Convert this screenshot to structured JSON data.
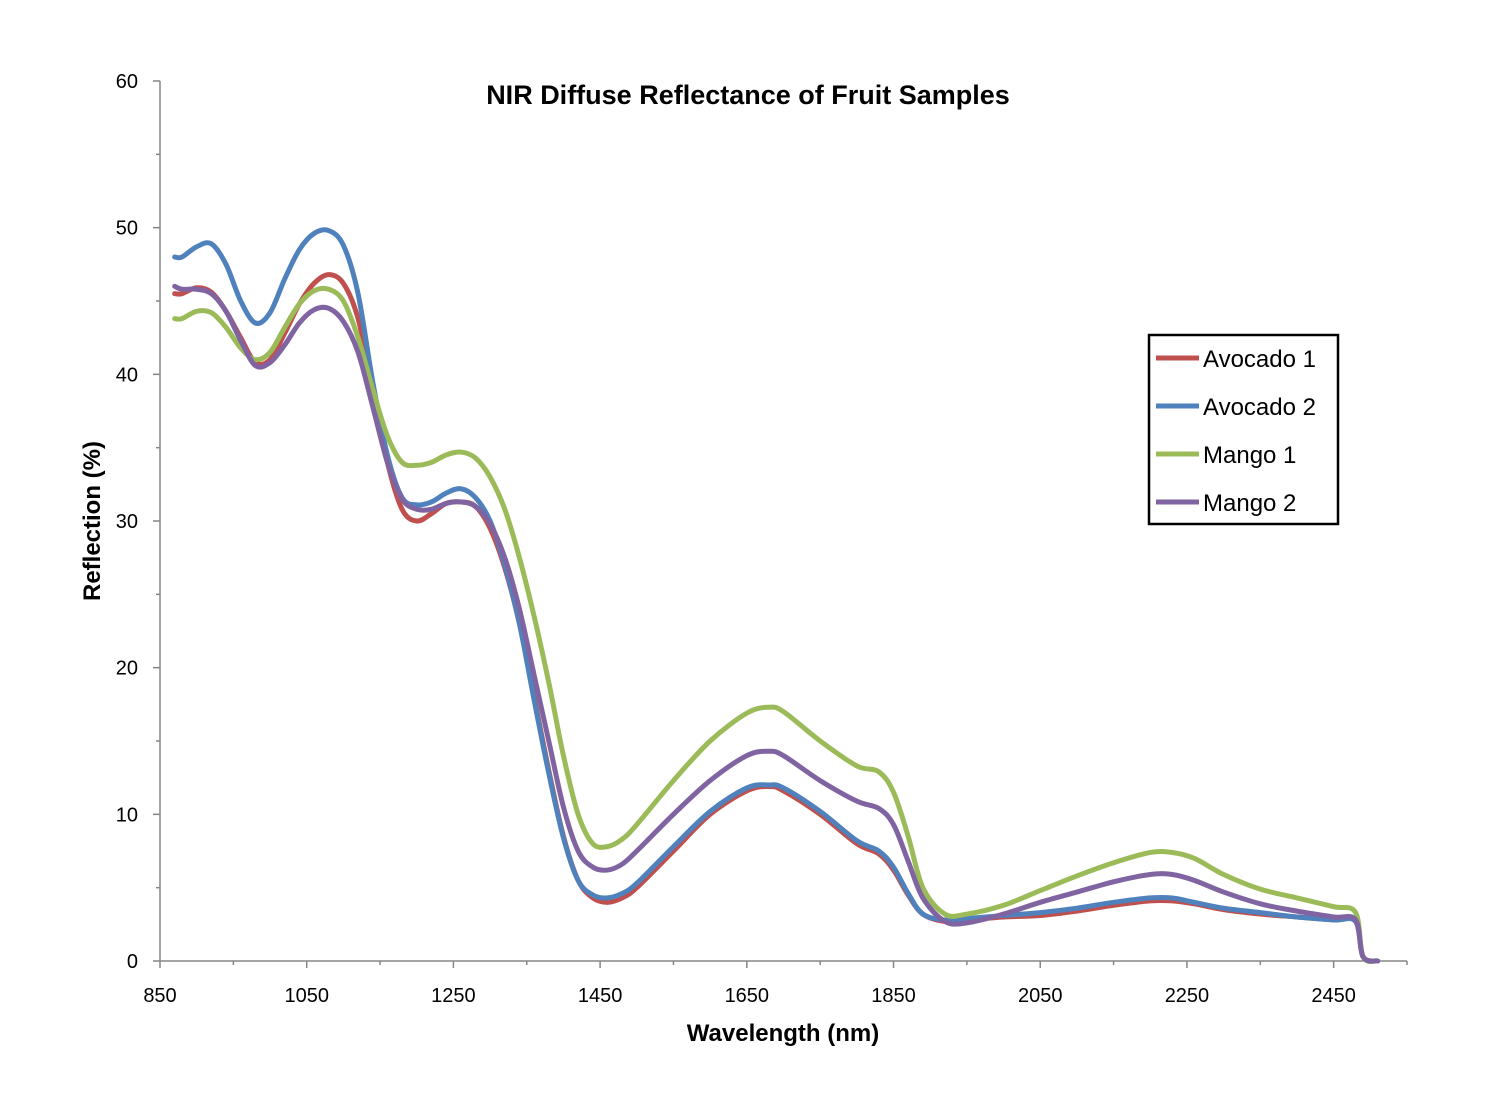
{
  "chart_data": {
    "type": "line",
    "title": "NIR Diffuse Reflectance of Fruit Samples",
    "xlabel": "Wavelength (nm)",
    "ylabel": "Reflection (%)",
    "xlim": [
      850,
      2550
    ],
    "ylim": [
      0,
      60
    ],
    "x_ticks": [
      850,
      1050,
      1250,
      1450,
      1650,
      1850,
      2050,
      2250,
      2450
    ],
    "x_tick_labels": [
      "850",
      "1050",
      "1250",
      "1450",
      "1650",
      "1850",
      "2050",
      "2250",
      "2450"
    ],
    "y_ticks": [
      0,
      10,
      20,
      30,
      40,
      50,
      60
    ],
    "y_tick_labels": [
      "0",
      "10",
      "20",
      "30",
      "40",
      "50",
      "60"
    ],
    "grid": false,
    "legend_position": "right",
    "series": [
      {
        "name": "Avocado 1",
        "color": "#c0504d",
        "points": [
          [
            870,
            45.5
          ],
          [
            880,
            45.5
          ],
          [
            900,
            45.9
          ],
          [
            920,
            45.6
          ],
          [
            940,
            44.3
          ],
          [
            960,
            42.5
          ],
          [
            980,
            40.8
          ],
          [
            1000,
            41.0
          ],
          [
            1020,
            42.8
          ],
          [
            1040,
            44.8
          ],
          [
            1060,
            46.2
          ],
          [
            1080,
            46.8
          ],
          [
            1100,
            46.2
          ],
          [
            1120,
            43.8
          ],
          [
            1140,
            39.0
          ],
          [
            1160,
            34.0
          ],
          [
            1180,
            30.8
          ],
          [
            1200,
            30.0
          ],
          [
            1220,
            30.5
          ],
          [
            1240,
            31.2
          ],
          [
            1260,
            31.3
          ],
          [
            1280,
            31.0
          ],
          [
            1300,
            29.5
          ],
          [
            1320,
            26.8
          ],
          [
            1340,
            23.0
          ],
          [
            1360,
            18.0
          ],
          [
            1380,
            13.0
          ],
          [
            1400,
            8.5
          ],
          [
            1420,
            5.5
          ],
          [
            1440,
            4.3
          ],
          [
            1460,
            4.0
          ],
          [
            1480,
            4.3
          ],
          [
            1500,
            5.0
          ],
          [
            1550,
            7.5
          ],
          [
            1600,
            10.0
          ],
          [
            1650,
            11.6
          ],
          [
            1680,
            11.9
          ],
          [
            1700,
            11.6
          ],
          [
            1750,
            10.0
          ],
          [
            1800,
            8.0
          ],
          [
            1830,
            7.3
          ],
          [
            1850,
            6.2
          ],
          [
            1870,
            4.5
          ],
          [
            1890,
            3.2
          ],
          [
            1920,
            2.7
          ],
          [
            1950,
            2.8
          ],
          [
            2000,
            3.0
          ],
          [
            2050,
            3.1
          ],
          [
            2100,
            3.4
          ],
          [
            2150,
            3.8
          ],
          [
            2200,
            4.1
          ],
          [
            2230,
            4.1
          ],
          [
            2260,
            3.9
          ],
          [
            2300,
            3.5
          ],
          [
            2350,
            3.2
          ],
          [
            2400,
            3.0
          ],
          [
            2450,
            2.8
          ],
          [
            2480,
            2.7
          ],
          [
            2490,
            0.3
          ],
          [
            2510,
            0.0
          ]
        ]
      },
      {
        "name": "Avocado 2",
        "color": "#4f81bd",
        "points": [
          [
            870,
            48.0
          ],
          [
            880,
            48.0
          ],
          [
            900,
            48.7
          ],
          [
            920,
            48.9
          ],
          [
            940,
            47.5
          ],
          [
            960,
            45.0
          ],
          [
            980,
            43.5
          ],
          [
            1000,
            44.2
          ],
          [
            1020,
            46.5
          ],
          [
            1040,
            48.5
          ],
          [
            1060,
            49.6
          ],
          [
            1080,
            49.8
          ],
          [
            1100,
            48.8
          ],
          [
            1120,
            45.5
          ],
          [
            1140,
            39.5
          ],
          [
            1160,
            34.5
          ],
          [
            1180,
            31.6
          ],
          [
            1200,
            31.1
          ],
          [
            1220,
            31.3
          ],
          [
            1240,
            31.9
          ],
          [
            1260,
            32.2
          ],
          [
            1280,
            31.6
          ],
          [
            1300,
            30.0
          ],
          [
            1320,
            27.0
          ],
          [
            1340,
            23.0
          ],
          [
            1360,
            17.8
          ],
          [
            1380,
            12.8
          ],
          [
            1400,
            8.4
          ],
          [
            1420,
            5.5
          ],
          [
            1440,
            4.5
          ],
          [
            1460,
            4.3
          ],
          [
            1480,
            4.6
          ],
          [
            1500,
            5.3
          ],
          [
            1550,
            7.8
          ],
          [
            1600,
            10.2
          ],
          [
            1650,
            11.8
          ],
          [
            1680,
            12.0
          ],
          [
            1700,
            11.8
          ],
          [
            1750,
            10.2
          ],
          [
            1800,
            8.2
          ],
          [
            1830,
            7.5
          ],
          [
            1850,
            6.4
          ],
          [
            1870,
            4.6
          ],
          [
            1890,
            3.2
          ],
          [
            1920,
            2.8
          ],
          [
            1950,
            2.9
          ],
          [
            2000,
            3.1
          ],
          [
            2050,
            3.3
          ],
          [
            2100,
            3.6
          ],
          [
            2150,
            4.0
          ],
          [
            2200,
            4.3
          ],
          [
            2230,
            4.3
          ],
          [
            2260,
            4.0
          ],
          [
            2300,
            3.6
          ],
          [
            2350,
            3.3
          ],
          [
            2400,
            3.0
          ],
          [
            2450,
            2.8
          ],
          [
            2480,
            2.7
          ],
          [
            2490,
            0.3
          ],
          [
            2510,
            0.0
          ]
        ]
      },
      {
        "name": "Mango 1",
        "color": "#9bbb59",
        "points": [
          [
            870,
            43.8
          ],
          [
            880,
            43.8
          ],
          [
            900,
            44.3
          ],
          [
            920,
            44.2
          ],
          [
            940,
            43.2
          ],
          [
            960,
            41.8
          ],
          [
            980,
            41.0
          ],
          [
            1000,
            41.5
          ],
          [
            1020,
            43.2
          ],
          [
            1040,
            44.8
          ],
          [
            1060,
            45.7
          ],
          [
            1080,
            45.8
          ],
          [
            1100,
            45.0
          ],
          [
            1120,
            42.5
          ],
          [
            1140,
            39.0
          ],
          [
            1160,
            35.8
          ],
          [
            1180,
            34.0
          ],
          [
            1200,
            33.8
          ],
          [
            1220,
            34.0
          ],
          [
            1240,
            34.5
          ],
          [
            1260,
            34.7
          ],
          [
            1280,
            34.3
          ],
          [
            1300,
            33.0
          ],
          [
            1320,
            30.8
          ],
          [
            1340,
            27.5
          ],
          [
            1360,
            23.5
          ],
          [
            1380,
            19.0
          ],
          [
            1400,
            14.0
          ],
          [
            1420,
            10.0
          ],
          [
            1440,
            8.0
          ],
          [
            1460,
            7.8
          ],
          [
            1480,
            8.3
          ],
          [
            1500,
            9.3
          ],
          [
            1550,
            12.3
          ],
          [
            1600,
            15.0
          ],
          [
            1650,
            16.9
          ],
          [
            1680,
            17.3
          ],
          [
            1700,
            17.0
          ],
          [
            1750,
            15.0
          ],
          [
            1800,
            13.3
          ],
          [
            1830,
            12.9
          ],
          [
            1850,
            11.5
          ],
          [
            1870,
            8.5
          ],
          [
            1890,
            5.0
          ],
          [
            1920,
            3.2
          ],
          [
            1950,
            3.2
          ],
          [
            2000,
            3.8
          ],
          [
            2050,
            4.8
          ],
          [
            2100,
            5.8
          ],
          [
            2150,
            6.7
          ],
          [
            2200,
            7.4
          ],
          [
            2230,
            7.4
          ],
          [
            2260,
            7.0
          ],
          [
            2300,
            5.9
          ],
          [
            2350,
            4.9
          ],
          [
            2400,
            4.3
          ],
          [
            2450,
            3.7
          ],
          [
            2480,
            3.3
          ],
          [
            2490,
            0.3
          ],
          [
            2510,
            0.0
          ]
        ]
      },
      {
        "name": "Mango 2",
        "color": "#8064a2",
        "points": [
          [
            870,
            46.0
          ],
          [
            880,
            45.8
          ],
          [
            900,
            45.8
          ],
          [
            920,
            45.5
          ],
          [
            940,
            44.3
          ],
          [
            960,
            42.3
          ],
          [
            980,
            40.6
          ],
          [
            1000,
            40.8
          ],
          [
            1020,
            42.0
          ],
          [
            1040,
            43.5
          ],
          [
            1060,
            44.4
          ],
          [
            1080,
            44.5
          ],
          [
            1100,
            43.6
          ],
          [
            1120,
            41.5
          ],
          [
            1140,
            37.8
          ],
          [
            1160,
            34.0
          ],
          [
            1180,
            31.5
          ],
          [
            1200,
            30.8
          ],
          [
            1220,
            30.8
          ],
          [
            1240,
            31.2
          ],
          [
            1260,
            31.3
          ],
          [
            1280,
            31.0
          ],
          [
            1300,
            29.8
          ],
          [
            1320,
            27.5
          ],
          [
            1340,
            24.0
          ],
          [
            1360,
            19.5
          ],
          [
            1380,
            15.0
          ],
          [
            1400,
            10.5
          ],
          [
            1420,
            7.5
          ],
          [
            1440,
            6.4
          ],
          [
            1460,
            6.2
          ],
          [
            1480,
            6.6
          ],
          [
            1500,
            7.5
          ],
          [
            1550,
            10.0
          ],
          [
            1600,
            12.3
          ],
          [
            1650,
            14.0
          ],
          [
            1680,
            14.3
          ],
          [
            1700,
            14.0
          ],
          [
            1750,
            12.3
          ],
          [
            1800,
            10.9
          ],
          [
            1830,
            10.4
          ],
          [
            1850,
            9.3
          ],
          [
            1870,
            6.8
          ],
          [
            1890,
            4.3
          ],
          [
            1920,
            2.7
          ],
          [
            1950,
            2.6
          ],
          [
            2000,
            3.2
          ],
          [
            2050,
            4.0
          ],
          [
            2100,
            4.7
          ],
          [
            2150,
            5.4
          ],
          [
            2200,
            5.9
          ],
          [
            2230,
            5.9
          ],
          [
            2260,
            5.5
          ],
          [
            2300,
            4.7
          ],
          [
            2350,
            3.9
          ],
          [
            2400,
            3.4
          ],
          [
            2450,
            3.0
          ],
          [
            2480,
            2.8
          ],
          [
            2490,
            0.3
          ],
          [
            2510,
            0.0
          ]
        ]
      }
    ]
  }
}
